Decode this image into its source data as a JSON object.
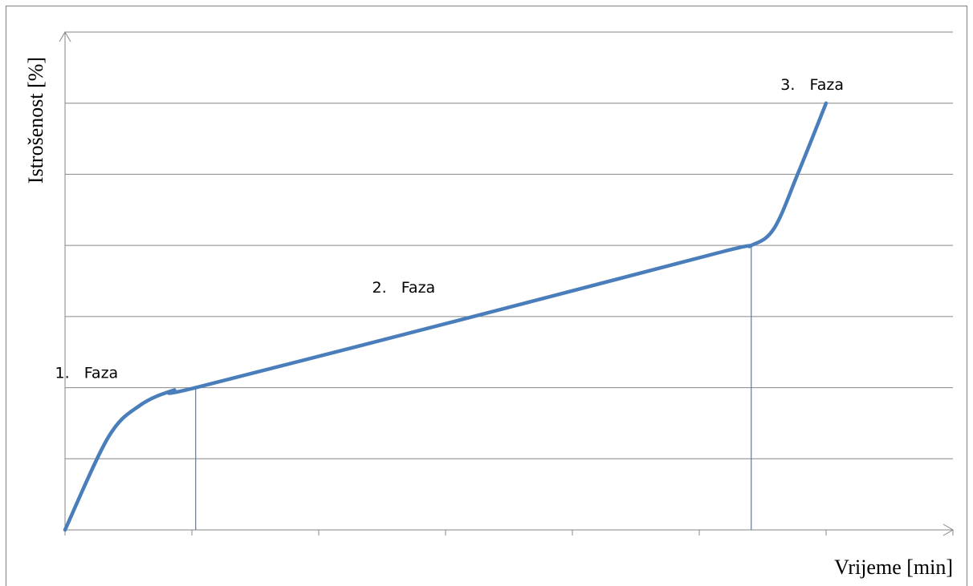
{
  "chart_data": {
    "type": "line",
    "x_label": "Vrijeme [min]",
    "y_label": "Istrošenost [%]",
    "x": [
      0,
      0.34,
      0.59,
      0.85,
      1.03,
      3.22,
      5.18,
      5.41,
      5.59,
      5.78,
      6
    ],
    "series": [
      {
        "color": "#4a7ebb",
        "values": [
          0,
          1.3,
          1.75,
          1.96,
          2,
          3,
          3.91,
          4,
          4.24,
          5.02,
          6
        ]
      }
    ],
    "phase_boundaries": [
      {
        "x": 1.03,
        "y": 2
      },
      {
        "x": 5.41,
        "y": 4
      }
    ],
    "annotations": [
      {
        "text": "1.   Faza",
        "x": 0.17,
        "y": 2.2
      },
      {
        "text": "2.   Faza",
        "x": 2.67,
        "y": 3.4
      },
      {
        "text": "3.   Faza",
        "x": 5.89,
        "y": 6.25
      }
    ],
    "xlim": [
      0,
      7
    ],
    "ylim": [
      0,
      7
    ],
    "xticks": [
      0,
      1,
      2,
      3,
      4,
      5,
      6,
      7
    ],
    "yticks": [
      0,
      1,
      2,
      3,
      4,
      5,
      6,
      7
    ],
    "grid": true
  }
}
